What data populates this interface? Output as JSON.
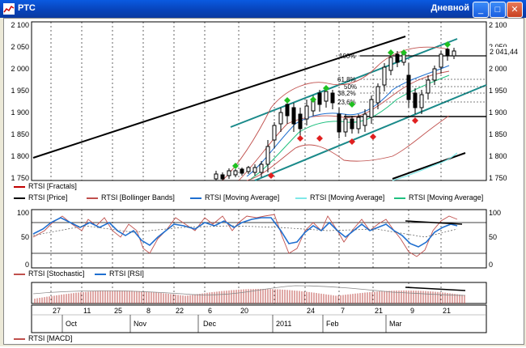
{
  "window": {
    "title": "РТС",
    "period": "Дневной",
    "buttons": {
      "minimize": "_",
      "maximize": "□",
      "close": "✕"
    }
  },
  "price_panel": {
    "y_ticks": [
      "2 100",
      "2 050",
      "2 000",
      "1 950",
      "1 900",
      "1 850",
      "1 800",
      "1 750"
    ],
    "right_ticks": [
      "2 100",
      "2 050",
      "2 000",
      "1 950",
      "1 900",
      "1 850",
      "1 800",
      "1 750"
    ],
    "last_price": "2 041,44",
    "fib_labels": [
      "100%",
      "61,8%",
      "50%",
      "38,2%",
      "23,6%"
    ]
  },
  "legend1": {
    "fractals": "RTSI [Fractals]",
    "price": "RTSI [Price]",
    "bollinger": "RTSI [Bollinger Bands]",
    "ma1": "RTSI [Moving Average]",
    "ma2": "RTSI [Moving Average]",
    "ma3": "RTSI [Moving Average]"
  },
  "osc_panel": {
    "ticks_left": [
      "100",
      "50",
      "0"
    ],
    "ticks_right": [
      "100",
      "50",
      "0"
    ]
  },
  "legend2": {
    "stochastic": "RTSI [Stochastic]",
    "rsi": "RTSI [RSI]"
  },
  "legend3": {
    "macd": "RTSI [MACD]"
  },
  "time_axis": {
    "days": [
      "27",
      "11",
      "25",
      "8",
      "22",
      "6",
      "20",
      "24",
      "7",
      "21",
      "9",
      "21"
    ],
    "months": [
      "Oct",
      "Nov",
      "Dec",
      "2011",
      "Feb",
      "Mar"
    ]
  },
  "colors": {
    "price": "#000000",
    "bollinger": "#c0504d",
    "ma_blue": "#1f6fd0",
    "ma_cyan": "#7fe8e8",
    "ma_green": "#20c080",
    "fractal_up": "#20c020",
    "fractal_down": "#e02020",
    "channel": "#1a8a8a"
  }
}
